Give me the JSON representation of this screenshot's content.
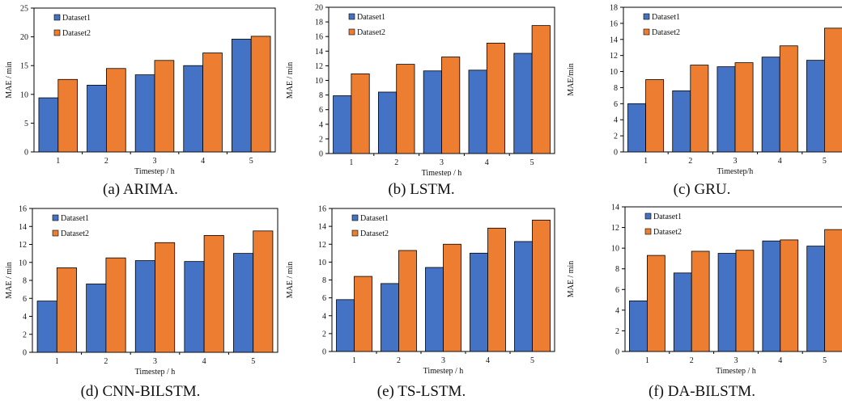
{
  "colors": {
    "dataset1": "#4472C4",
    "dataset2": "#ED7D31"
  },
  "chart_data": [
    {
      "type": "bar",
      "caption": "(a)  ARIMA.",
      "categories": [
        "1",
        "2",
        "3",
        "4",
        "5"
      ],
      "series": [
        {
          "name": "Dataset1",
          "values": [
            9.4,
            11.6,
            13.4,
            15.0,
            19.6
          ]
        },
        {
          "name": "Dataset2",
          "values": [
            12.6,
            14.5,
            15.9,
            17.2,
            20.1
          ]
        }
      ],
      "xlabel": "Timestep / h",
      "ylabel": "MAE / min",
      "ylim": [
        0,
        25
      ],
      "yticks": [
        0,
        5,
        10,
        15,
        20,
        25
      ],
      "legend": "top-left",
      "grid": false
    },
    {
      "type": "bar",
      "caption": "(b)  LSTM.",
      "categories": [
        "1",
        "2",
        "3",
        "4",
        "5"
      ],
      "series": [
        {
          "name": "Dataset1",
          "values": [
            7.9,
            8.4,
            11.3,
            11.4,
            13.7
          ]
        },
        {
          "name": "Dataset2",
          "values": [
            10.9,
            12.2,
            13.2,
            15.1,
            17.5
          ]
        }
      ],
      "xlabel": "Timestep / h",
      "ylabel": "MAE / min",
      "ylim": [
        0,
        20
      ],
      "yticks": [
        0,
        2,
        4,
        6,
        8,
        10,
        12,
        14,
        16,
        18,
        20
      ],
      "legend": "top-left",
      "grid": false
    },
    {
      "type": "bar",
      "caption": "(c)  GRU.",
      "categories": [
        "1",
        "2",
        "3",
        "4",
        "5"
      ],
      "series": [
        {
          "name": "Dataset1",
          "values": [
            6.0,
            7.6,
            10.6,
            11.8,
            11.4
          ]
        },
        {
          "name": "Dataset2",
          "values": [
            9.0,
            10.8,
            11.1,
            13.2,
            15.4
          ]
        }
      ],
      "xlabel": "Timestep/h",
      "ylabel": "MAE/min",
      "ylim": [
        0,
        18
      ],
      "yticks": [
        0,
        2,
        4,
        6,
        8,
        10,
        12,
        14,
        16,
        18
      ],
      "legend": "top-left",
      "grid": false
    },
    {
      "type": "bar",
      "caption": "(d)  CNN-BILSTM.",
      "categories": [
        "1",
        "2",
        "3",
        "4",
        "5"
      ],
      "series": [
        {
          "name": "Dataset1",
          "values": [
            5.7,
            7.6,
            10.2,
            10.1,
            11.0
          ]
        },
        {
          "name": "Dataset2",
          "values": [
            9.4,
            10.5,
            12.2,
            13.0,
            13.5
          ]
        }
      ],
      "xlabel": "Timestep / h",
      "ylabel": "MAE / min",
      "ylim": [
        0,
        16
      ],
      "yticks": [
        0,
        2,
        4,
        6,
        8,
        10,
        12,
        14,
        16
      ],
      "legend": "top-left",
      "grid": false
    },
    {
      "type": "bar",
      "caption": "(e)  TS-LSTM.",
      "categories": [
        "1",
        "2",
        "3",
        "4",
        "5"
      ],
      "series": [
        {
          "name": "Dataset1",
          "values": [
            5.8,
            7.6,
            9.4,
            11.0,
            12.3
          ]
        },
        {
          "name": "Dataset2",
          "values": [
            8.4,
            11.3,
            12.0,
            13.8,
            14.7
          ]
        }
      ],
      "xlabel": "Timestep / h",
      "ylabel": "MAE / min",
      "ylim": [
        0,
        16
      ],
      "yticks": [
        0,
        2,
        4,
        6,
        8,
        10,
        12,
        14,
        16
      ],
      "legend": "top-left",
      "grid": false
    },
    {
      "type": "bar",
      "caption": "(f)  DA-BILSTM.",
      "categories": [
        "1",
        "2",
        "3",
        "4",
        "5"
      ],
      "series": [
        {
          "name": "Dataset1",
          "values": [
            4.9,
            7.6,
            9.5,
            10.7,
            10.2
          ]
        },
        {
          "name": "Dataset2",
          "values": [
            9.3,
            9.7,
            9.8,
            10.8,
            11.8
          ]
        }
      ],
      "xlabel": "Timestep / h",
      "ylabel": "MAE / min",
      "ylim": [
        0,
        14
      ],
      "yticks": [
        0,
        2,
        4,
        6,
        8,
        10,
        12,
        14
      ],
      "legend": "top-left",
      "grid": false
    }
  ]
}
